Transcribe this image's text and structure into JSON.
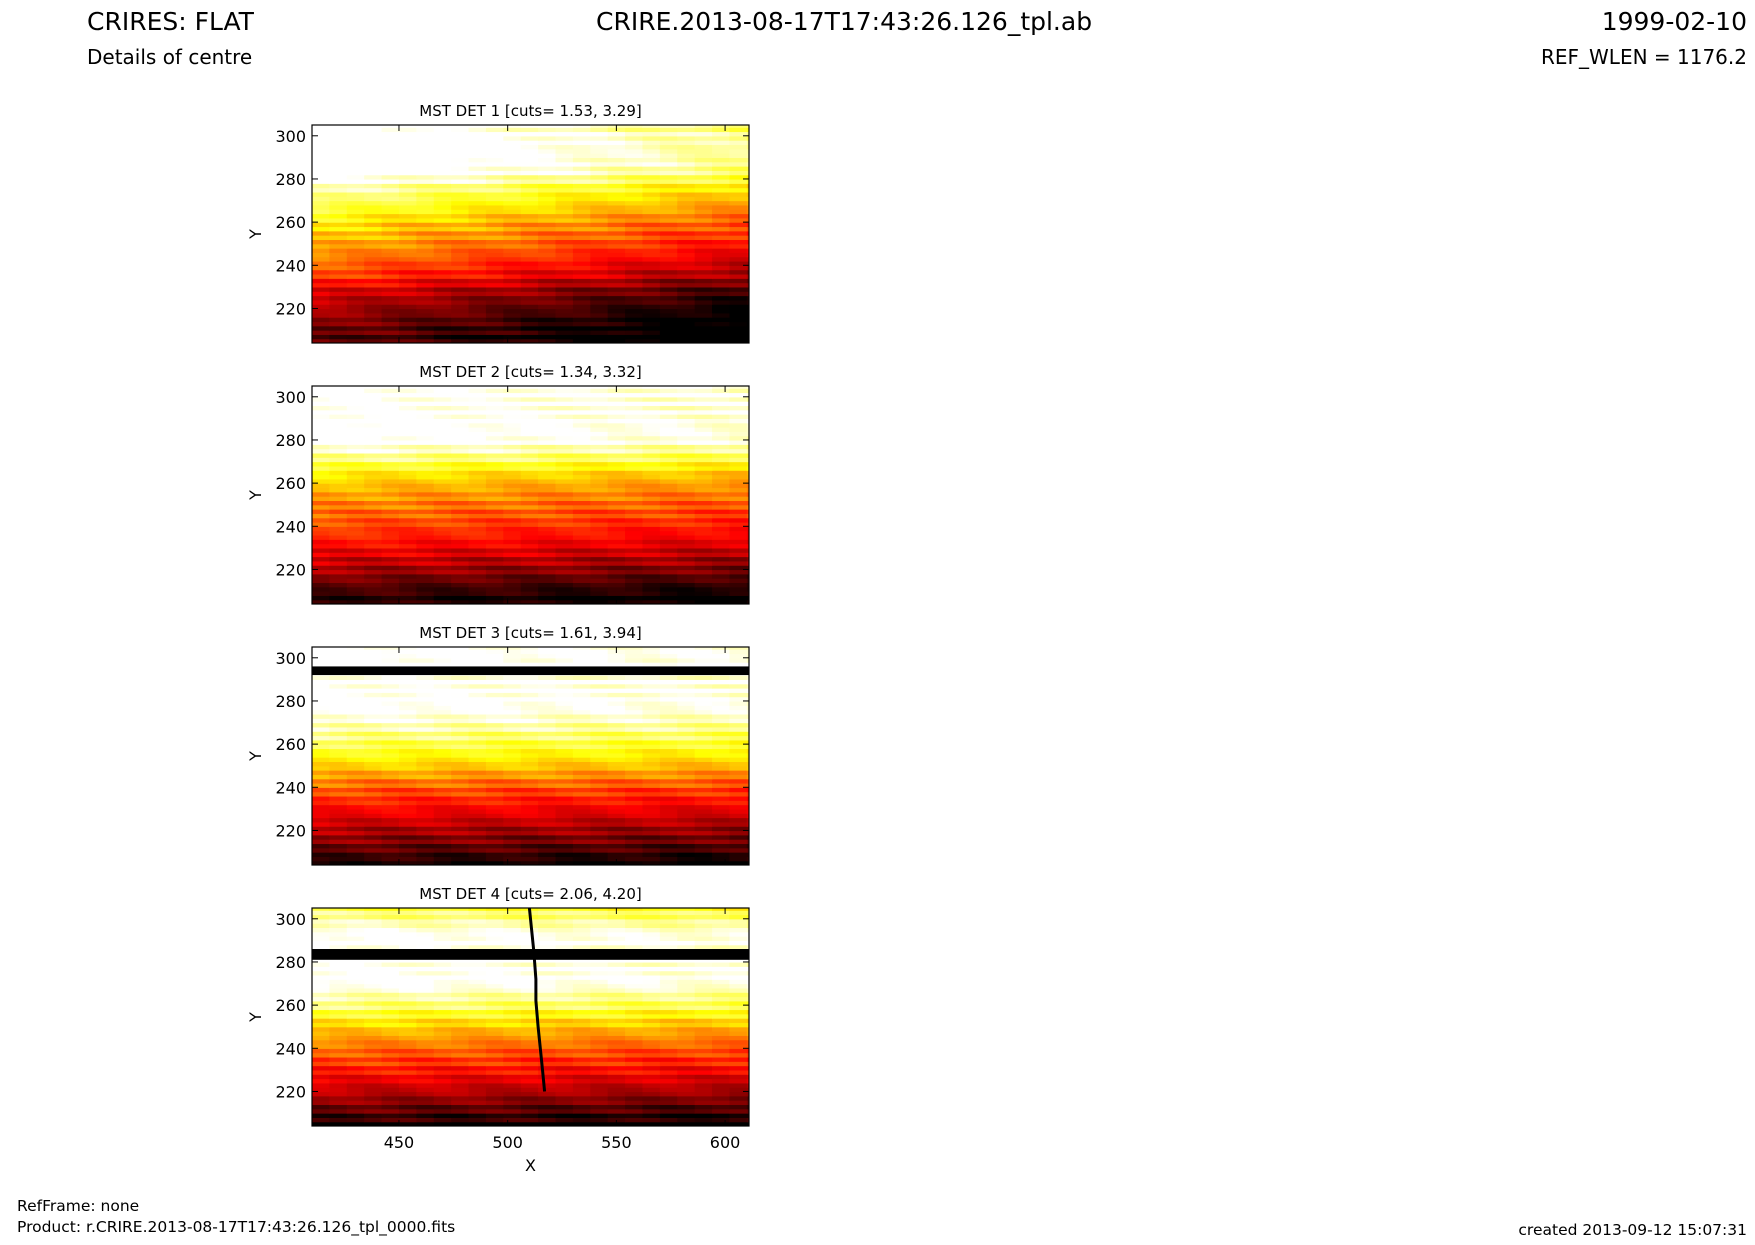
{
  "header": {
    "title": "CRIRES: FLAT",
    "subtitle": "Details of centre",
    "file": "CRIRE.2013-08-17T17:43:26.126_tpl.ab",
    "date": "1999-02-10",
    "ref_wlen": "REF_WLEN = 1176.2"
  },
  "footer": {
    "refframe": "RefFrame: none",
    "product": "Product: r.CRIRE.2013-08-17T17:43:26.126_tpl_0000.fits",
    "created": "created 2013-09-12 15:07:31"
  },
  "colors": {
    "colormap": "hot",
    "frame": "#000000"
  },
  "chart_data": [
    {
      "type": "heatmap",
      "title": "MST DET 1 [cuts= 1.53, 3.29]",
      "ylabel": "Y",
      "xlabel": "",
      "xlim": [
        410,
        611
      ],
      "ylim": [
        204,
        305
      ],
      "yticks": [
        220,
        240,
        260,
        280,
        300
      ],
      "xticks": [],
      "cuts": [
        1.53,
        3.29
      ],
      "row_profile": [
        [
          204,
          0.0
        ],
        [
          212,
          0.05
        ],
        [
          220,
          0.12
        ],
        [
          228,
          0.2
        ],
        [
          235,
          0.33
        ],
        [
          240,
          0.38
        ],
        [
          245,
          0.45
        ],
        [
          252,
          0.52
        ],
        [
          260,
          0.6
        ],
        [
          266,
          0.68
        ],
        [
          272,
          0.76
        ],
        [
          277,
          0.83
        ],
        [
          280,
          0.9
        ],
        [
          283,
          0.95
        ],
        [
          286,
          1.0
        ],
        [
          300,
          1.0
        ],
        [
          305,
          0.95
        ]
      ],
      "x_gradient": 0.25,
      "bad_rows": [],
      "vertical_trace": null
    },
    {
      "type": "heatmap",
      "title": "MST DET 2 [cuts= 1.34, 3.32]",
      "ylabel": "Y",
      "xlabel": "",
      "xlim": [
        410,
        611
      ],
      "ylim": [
        204,
        305
      ],
      "yticks": [
        220,
        240,
        260,
        280,
        300
      ],
      "xticks": [],
      "cuts": [
        1.34,
        3.32
      ],
      "row_profile": [
        [
          204,
          0.0
        ],
        [
          212,
          0.08
        ],
        [
          220,
          0.2
        ],
        [
          228,
          0.3
        ],
        [
          235,
          0.38
        ],
        [
          242,
          0.45
        ],
        [
          250,
          0.52
        ],
        [
          258,
          0.6
        ],
        [
          264,
          0.68
        ],
        [
          268,
          0.76
        ],
        [
          272,
          0.85
        ],
        [
          276,
          0.92
        ],
        [
          280,
          1.0
        ],
        [
          305,
          1.0
        ]
      ],
      "x_gradient": 0.08,
      "bad_rows": [],
      "vertical_trace": null
    },
    {
      "type": "heatmap",
      "title": "MST DET 3 [cuts= 1.61, 3.94]",
      "ylabel": "Y",
      "xlabel": "",
      "xlim": [
        410,
        611
      ],
      "ylim": [
        204,
        305
      ],
      "yticks": [
        220,
        240,
        260,
        280,
        300
      ],
      "xticks": [],
      "cuts": [
        1.61,
        3.94
      ],
      "row_profile": [
        [
          204,
          0.0
        ],
        [
          212,
          0.12
        ],
        [
          220,
          0.22
        ],
        [
          230,
          0.35
        ],
        [
          240,
          0.48
        ],
        [
          248,
          0.62
        ],
        [
          254,
          0.72
        ],
        [
          260,
          0.8
        ],
        [
          266,
          0.88
        ],
        [
          272,
          0.95
        ],
        [
          278,
          1.0
        ],
        [
          305,
          1.0
        ]
      ],
      "x_gradient": 0.05,
      "bad_rows": [
        [
          292,
          296
        ]
      ],
      "vertical_trace": null
    },
    {
      "type": "heatmap",
      "title": "MST DET 4 [cuts= 2.06, 4.20]",
      "ylabel": "Y",
      "xlabel": "X",
      "xlim": [
        410,
        611
      ],
      "ylim": [
        204,
        305
      ],
      "yticks": [
        220,
        240,
        260,
        280,
        300
      ],
      "xticks": [
        450,
        500,
        550,
        600
      ],
      "cuts": [
        2.06,
        4.2
      ],
      "row_profile": [
        [
          204,
          0.0
        ],
        [
          212,
          0.12
        ],
        [
          220,
          0.25
        ],
        [
          230,
          0.38
        ],
        [
          240,
          0.5
        ],
        [
          248,
          0.62
        ],
        [
          254,
          0.72
        ],
        [
          260,
          0.84
        ],
        [
          266,
          0.92
        ],
        [
          270,
          1.0
        ],
        [
          292,
          1.0
        ],
        [
          305,
          0.8
        ]
      ],
      "x_gradient": 0.05,
      "bad_rows": [
        [
          281,
          286
        ]
      ],
      "vertical_trace": [
        [
          510,
          305
        ],
        [
          511,
          295
        ],
        [
          512,
          285
        ],
        [
          513,
          272
        ],
        [
          513,
          262
        ],
        [
          514,
          250
        ],
        [
          515,
          240
        ],
        [
          516,
          230
        ],
        [
          517,
          220
        ]
      ]
    }
  ]
}
